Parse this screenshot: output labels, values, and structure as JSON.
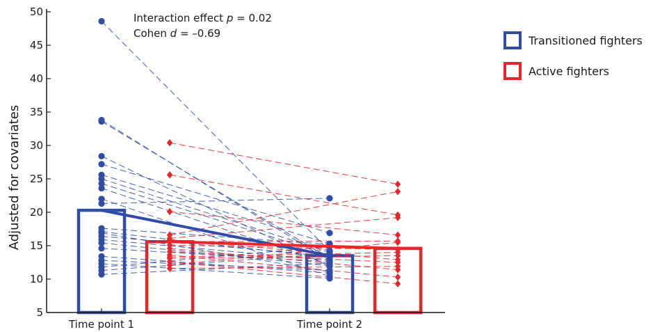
{
  "chart_data": {
    "type": "scatter",
    "title": "",
    "xlabel": "",
    "ylabel": "Adjusted for covariates",
    "ylim": [
      5,
      50
    ],
    "yticks": [
      5,
      10,
      15,
      20,
      25,
      30,
      35,
      40,
      45,
      50
    ],
    "categories": [
      "Time point 1",
      "Time point 2"
    ],
    "annotations": {
      "line1_prefix": "Interaction effect ",
      "line1_var": "p",
      "line1_value": " = 0.02",
      "line2_prefix": "Cohen ",
      "line2_var": "d",
      "line2_value": " = –0.69"
    },
    "legend_position": "right",
    "series": [
      {
        "name": "Transitioned fighters",
        "color": "#2E4DA7",
        "marker": "circle",
        "mean_tp1": 20.3,
        "mean_tp2": 13.5,
        "pairs": [
          [
            48.6,
            14.2
          ],
          [
            33.8,
            12.7
          ],
          [
            33.6,
            13.1
          ],
          [
            28.4,
            11.9
          ],
          [
            27.2,
            16.9
          ],
          [
            25.6,
            15.3
          ],
          [
            25.0,
            14.0
          ],
          [
            24.3,
            13.6
          ],
          [
            23.6,
            12.2
          ],
          [
            22.0,
            10.4
          ],
          [
            21.3,
            22.1
          ],
          [
            17.6,
            15.2
          ],
          [
            17.1,
            13.2
          ],
          [
            16.4,
            13.5
          ],
          [
            15.4,
            12.0
          ],
          [
            14.6,
            12.6
          ],
          [
            13.4,
            10.9
          ],
          [
            12.8,
            11.3
          ],
          [
            12.3,
            10.1
          ],
          [
            11.8,
            14.9
          ],
          [
            11.3,
            13.8
          ],
          [
            10.7,
            12.4
          ],
          [
            15.9,
            12.8
          ],
          [
            16.9,
            11.1
          ]
        ]
      },
      {
        "name": "Active fighters",
        "color": "#E8262A",
        "marker": "diamond",
        "mean_tp1": 15.6,
        "mean_tp2": 14.6,
        "pairs": [
          [
            30.4,
            24.2
          ],
          [
            25.6,
            19.6
          ],
          [
            20.1,
            16.6
          ],
          [
            16.6,
            23.1
          ],
          [
            16.1,
            19.2
          ],
          [
            15.6,
            15.7
          ],
          [
            15.1,
            14.4
          ],
          [
            14.6,
            11.4
          ],
          [
            14.1,
            12.5
          ],
          [
            13.6,
            10.3
          ],
          [
            13.1,
            13.5
          ],
          [
            12.6,
            9.3
          ],
          [
            12.1,
            15.5
          ],
          [
            11.6,
            11.9
          ],
          [
            15.9,
            12.9
          ],
          [
            13.3,
            14.0
          ]
        ]
      }
    ]
  }
}
